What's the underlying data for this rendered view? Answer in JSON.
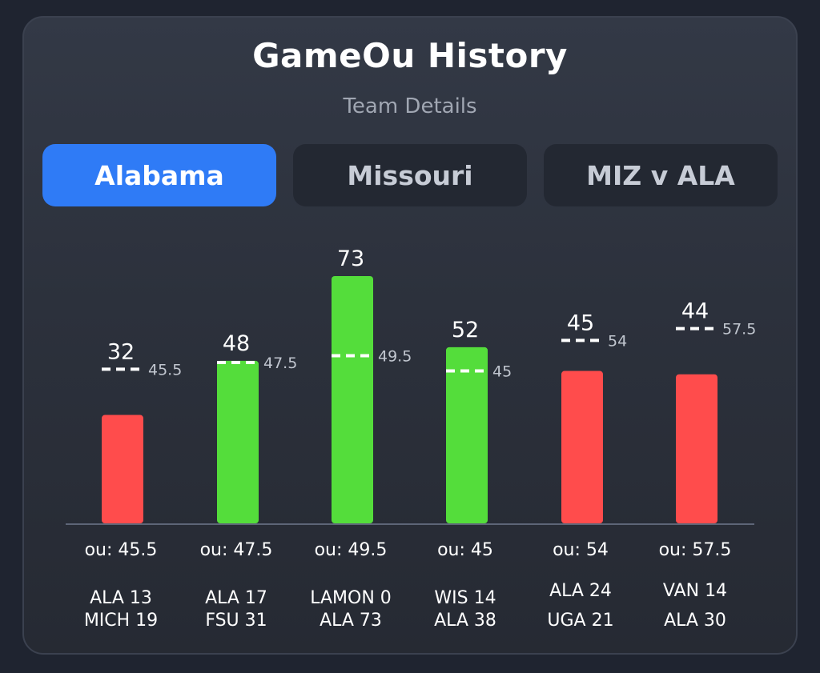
{
  "header": {
    "title": "GameOu History",
    "subtitle": "Team Details"
  },
  "tabs": [
    {
      "label": "Alabama",
      "active": true
    },
    {
      "label": "Missouri",
      "active": false
    },
    {
      "label": "MIZ v ALA",
      "active": false
    }
  ],
  "colors": {
    "over": "#54dd3b",
    "under": "#ff4c4c",
    "accent": "#2f7bf6"
  },
  "chart_data": {
    "type": "bar",
    "title": "GameOu History",
    "subtitle": "Team Details",
    "categories": [
      "ou: 45.5",
      "ou: 47.5",
      "ou: 49.5",
      "ou: 45",
      "ou: 54",
      "ou: 57.5"
    ],
    "values": [
      32,
      48,
      73,
      52,
      45,
      44
    ],
    "ou_lines": [
      45.5,
      47.5,
      49.5,
      45,
      54,
      57.5
    ],
    "ou_labels": [
      "45.5",
      "47.5",
      "49.5",
      "45",
      "54",
      "57.5"
    ],
    "value_labels": [
      "32",
      "48",
      "73",
      "52",
      "45",
      "44"
    ],
    "results": [
      "under",
      "over",
      "over",
      "over",
      "under",
      "under"
    ],
    "games": [
      [
        "ALA 13",
        "MICH 19"
      ],
      [
        "ALA 17",
        "FSU 31"
      ],
      [
        "LAMON 0",
        "ALA 73"
      ],
      [
        "WIS 14",
        "ALA 38"
      ],
      [
        "ALA 24",
        "UGA 21"
      ],
      [
        "VAN 14",
        "ALA 30"
      ]
    ],
    "ylim": [
      0,
      73
    ],
    "grid": false,
    "legend": "none"
  }
}
